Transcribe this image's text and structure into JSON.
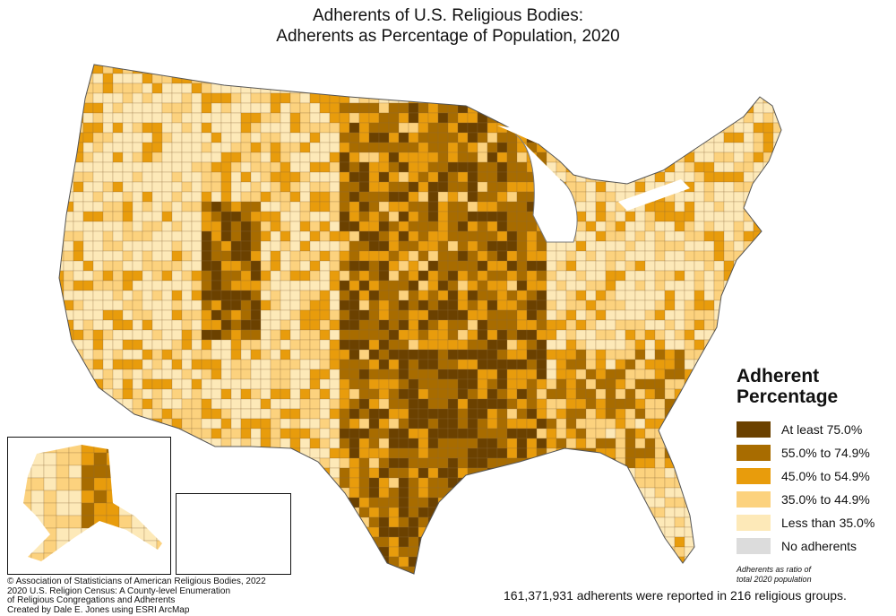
{
  "title_line1": "Adherents of U.S. Religious Bodies:",
  "title_line2": "Adherents as Percentage of Population, 2020",
  "legend": {
    "title_line1": "Adherent",
    "title_line2": "Percentage",
    "items": [
      {
        "label": "At least 75.0%",
        "color": "#6b4100"
      },
      {
        "label": "55.0% to 74.9%",
        "color": "#a86c00"
      },
      {
        "label": "45.0% to 54.9%",
        "color": "#e89c0c"
      },
      {
        "label": "35.0% to 44.9%",
        "color": "#fcd27e"
      },
      {
        "label": "Less than 35.0%",
        "color": "#fde9b8"
      },
      {
        "label": "No adherents",
        "color": "#dcdcdc"
      }
    ],
    "note_line1": "Adherents as ratio of",
    "note_line2": "total 2020 population"
  },
  "credits": [
    "© Association of Statisticians of American Religious Bodies, 2022",
    "2020 U.S. Religion Census: A County-level Enumeration",
    "of Religious Congregations and Adherents",
    "Created by Dale E. Jones using ESRI ArcMap"
  ],
  "summary": "161,371,931 adherents were reported in 216 religious groups."
}
